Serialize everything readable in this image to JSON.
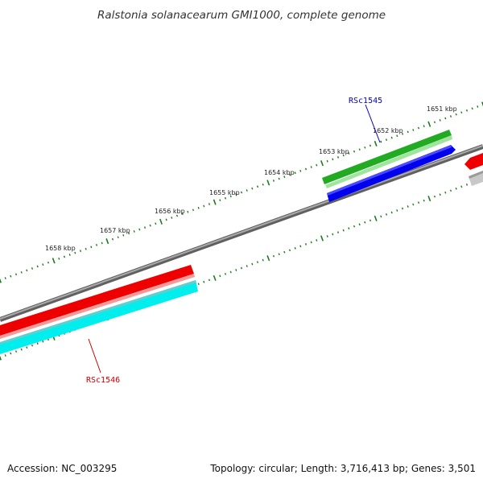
{
  "title": "Ralstonia solanacearum GMI1000, complete genome",
  "footer": {
    "accession": "Accession: NC_003295",
    "summary": "Topology: circular; Length: 3,716,413 bp; Genes: 3,501"
  },
  "scale_labels": [
    "1651 kbp",
    "1652 kbp",
    "1653 kbp",
    "1654 kbp",
    "1655 kbp",
    "1656 kbp",
    "1657 kbp",
    "1658 kbp"
  ],
  "genes": [
    {
      "label": "RSc1545",
      "color": "#0000cc"
    },
    {
      "label": "RSc1546",
      "color": "#cc0000"
    }
  ],
  "colors": {
    "backbone": "#808080",
    "tick": "#1f7a1f",
    "cds_green": "#33bb33",
    "cds_blue": "#0000ee",
    "cds_red": "#ee0000",
    "cds_cyan": "#00eeee",
    "gray_feature": "#aaaaaa"
  }
}
